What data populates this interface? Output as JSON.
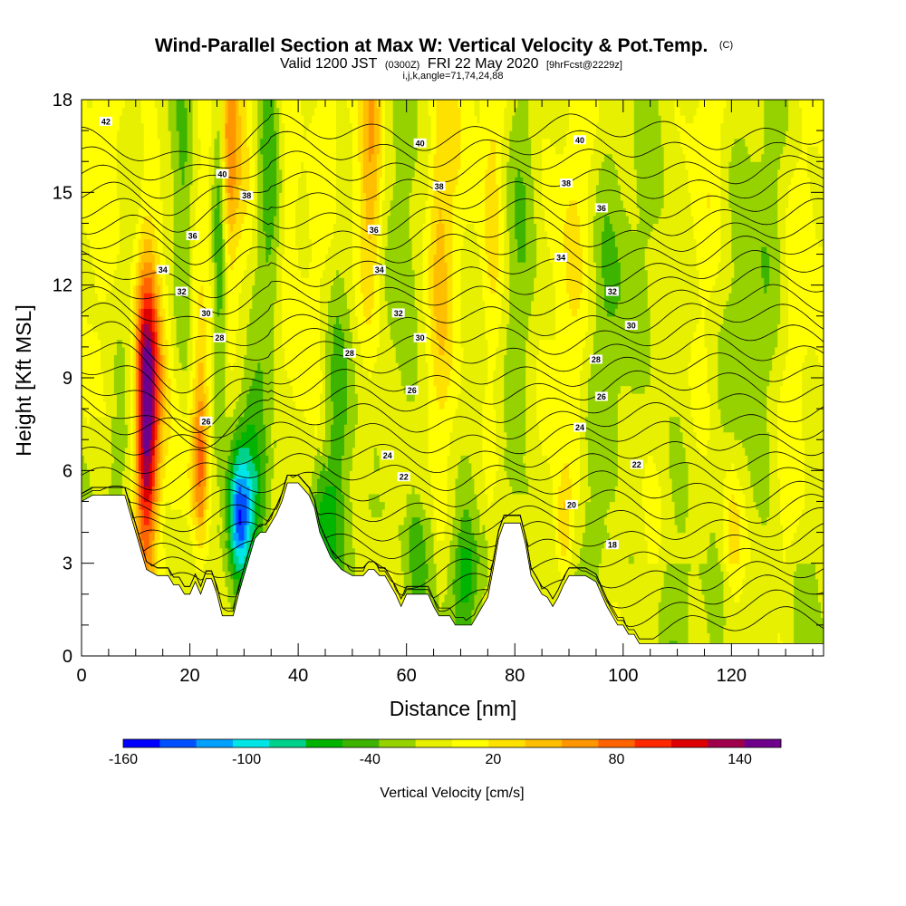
{
  "chart_data": {
    "type": "heatmap",
    "title": "Wind-Parallel Section at Max W: Vertical Velocity & Pot.Temp.",
    "title_mark": "(C)",
    "subtitle_parts": [
      "Valid 1200 JST",
      "(0300Z)",
      "FRI 22 May 2020",
      "[9hrFcst@2229z]"
    ],
    "subtitle2": "i,j,k,angle=71,74,24,88",
    "xlabel": "Distance [nm]",
    "ylabel": "Height [Kft MSL]",
    "xlim": [
      0,
      137
    ],
    "ylim": [
      0,
      18
    ],
    "x_ticks": [
      0,
      20,
      40,
      60,
      80,
      100,
      120
    ],
    "y_ticks": [
      0,
      3,
      6,
      9,
      12,
      15,
      18
    ],
    "x_tick_labels": [
      "0",
      "20",
      "40",
      "60",
      "80",
      "100",
      "120"
    ],
    "y_tick_labels": [
      "0",
      "3",
      "6",
      "9",
      "12",
      "15",
      "18"
    ],
    "colorbar": {
      "label": "Vertical Velocity [cm/s]",
      "range": [
        -160,
        160
      ],
      "step": 20,
      "tick_values": [
        -160,
        -100,
        -40,
        20,
        80,
        140
      ],
      "tick_labels": [
        "-160",
        "-100",
        "-40",
        "20",
        "80",
        "140"
      ],
      "colors": [
        "#0000ff",
        "#0050ff",
        "#00a0ff",
        "#00e6e6",
        "#00d28c",
        "#00b400",
        "#3cb400",
        "#96d200",
        "#e6f000",
        "#ffff00",
        "#ffe100",
        "#ffbe00",
        "#ff9600",
        "#ff6400",
        "#ff2800",
        "#dc0000",
        "#a0004b",
        "#6e008c"
      ]
    },
    "terrain": [
      [
        0,
        5.0
      ],
      [
        2,
        5.2
      ],
      [
        8,
        5.2
      ],
      [
        10,
        4.0
      ],
      [
        12,
        2.8
      ],
      [
        14,
        2.6
      ],
      [
        16,
        2.6
      ],
      [
        17,
        2.3
      ],
      [
        18,
        2.3
      ],
      [
        19,
        2.0
      ],
      [
        20,
        2.0
      ],
      [
        21,
        2.4
      ],
      [
        22,
        2.0
      ],
      [
        23,
        2.5
      ],
      [
        24,
        2.5
      ],
      [
        25,
        2.0
      ],
      [
        26,
        1.3
      ],
      [
        28,
        1.3
      ],
      [
        29,
        2.0
      ],
      [
        30,
        2.6
      ],
      [
        31,
        3.2
      ],
      [
        32,
        3.8
      ],
      [
        33,
        4.0
      ],
      [
        34,
        4.0
      ],
      [
        36,
        4.6
      ],
      [
        37,
        5.0
      ],
      [
        38,
        5.6
      ],
      [
        40,
        5.6
      ],
      [
        42,
        5.2
      ],
      [
        43,
        4.8
      ],
      [
        44,
        4.0
      ],
      [
        45,
        3.6
      ],
      [
        46,
        3.2
      ],
      [
        48,
        2.8
      ],
      [
        50,
        2.6
      ],
      [
        52,
        2.6
      ],
      [
        53,
        2.8
      ],
      [
        54,
        2.8
      ],
      [
        55,
        2.6
      ],
      [
        56,
        2.6
      ],
      [
        57,
        2.3
      ],
      [
        58,
        2.0
      ],
      [
        59,
        1.6
      ],
      [
        60,
        2.0
      ],
      [
        64,
        2.0
      ],
      [
        65,
        1.6
      ],
      [
        66,
        1.3
      ],
      [
        67,
        1.3
      ],
      [
        68,
        1.3
      ],
      [
        69,
        1.0
      ],
      [
        72,
        1.0
      ],
      [
        73,
        1.3
      ],
      [
        75,
        1.9
      ],
      [
        76,
        2.8
      ],
      [
        77,
        3.8
      ],
      [
        78,
        4.3
      ],
      [
        81,
        4.3
      ],
      [
        82,
        3.6
      ],
      [
        83,
        2.6
      ],
      [
        84,
        2.3
      ],
      [
        85,
        2.0
      ],
      [
        86,
        1.9
      ],
      [
        87,
        1.6
      ],
      [
        88,
        1.9
      ],
      [
        89,
        2.3
      ],
      [
        90,
        2.6
      ],
      [
        93,
        2.6
      ],
      [
        95,
        2.4
      ],
      [
        96,
        2.0
      ],
      [
        97,
        1.6
      ],
      [
        98,
        1.3
      ],
      [
        99,
        1.0
      ],
      [
        100,
        1.0
      ],
      [
        101,
        0.7
      ],
      [
        102,
        0.7
      ],
      [
        103,
        0.4
      ],
      [
        137,
        0.4
      ]
    ],
    "updrafts": [
      {
        "x": 12,
        "y": 7.5,
        "w_x": 2.0,
        "w_y": 5.0,
        "value": 140
      },
      {
        "x": 13,
        "y": 9.5,
        "w_x": 3.0,
        "w_y": 4.0,
        "value": 60
      },
      {
        "x": 22,
        "y": 6.5,
        "w_x": 1.6,
        "w_y": 3.5,
        "value": 90
      },
      {
        "x": 26.5,
        "y": 16.5,
        "w_x": 2.2,
        "w_y": 4.0,
        "value": 90
      },
      {
        "x": 31,
        "y": 15.0,
        "w_x": 2.5,
        "w_y": 5.0,
        "value": 20
      },
      {
        "x": 53.5,
        "y": 15.5,
        "w_x": 2.2,
        "w_y": 5.0,
        "value": 60
      },
      {
        "x": 66,
        "y": 14.0,
        "w_x": 2.0,
        "w_y": 6.0,
        "value": 40
      },
      {
        "x": 76,
        "y": 14.0,
        "w_x": 2.0,
        "w_y": 6.0,
        "value": 30
      },
      {
        "x": 90,
        "y": 12.0,
        "w_x": 3.0,
        "w_y": 7.0,
        "value": 10
      },
      {
        "x": 89,
        "y": 4.0,
        "w_x": 1.5,
        "w_y": 1.5,
        "value": 50
      },
      {
        "x": 120,
        "y": 4.0,
        "w_x": 2.0,
        "w_y": 2.5,
        "value": 40
      },
      {
        "x": 38,
        "y": 16.0,
        "w_x": 2.5,
        "w_y": 5.0,
        "value": 30
      }
    ],
    "downdrafts": [
      {
        "x": 29,
        "y": 4.5,
        "w_x": 2.0,
        "w_y": 2.0,
        "value": -110
      },
      {
        "x": 25.5,
        "y": 15.5,
        "w_x": 1.4,
        "w_y": 6.0,
        "value": -100
      },
      {
        "x": 19,
        "y": 13.0,
        "w_x": 2.0,
        "w_y": 6.0,
        "value": -50
      },
      {
        "x": 35,
        "y": 15.0,
        "w_x": 2.5,
        "w_y": 5.0,
        "value": -50
      },
      {
        "x": 32,
        "y": 6.0,
        "w_x": 3.5,
        "w_y": 3.0,
        "value": -60
      },
      {
        "x": 47,
        "y": 8.0,
        "w_x": 3.0,
        "w_y": 6.0,
        "value": -40
      },
      {
        "x": 60,
        "y": 10.0,
        "w_x": 2.5,
        "w_y": 8.0,
        "value": -35
      },
      {
        "x": 44,
        "y": 4.5,
        "w_x": 2.0,
        "w_y": 2.0,
        "value": -35
      },
      {
        "x": 71,
        "y": 2.5,
        "w_x": 2.5,
        "w_y": 2.0,
        "value": -45
      },
      {
        "x": 63,
        "y": 3.5,
        "w_x": 3.0,
        "w_y": 2.5,
        "value": -30
      },
      {
        "x": 82,
        "y": 10.0,
        "w_x": 3.0,
        "w_y": 8.0,
        "value": -30
      },
      {
        "x": 98,
        "y": 12.0,
        "w_x": 4.0,
        "w_y": 7.0,
        "value": -30
      },
      {
        "x": 108,
        "y": 8.0,
        "w_x": 4.0,
        "w_y": 10.0,
        "value": -25
      },
      {
        "x": 125,
        "y": 10.0,
        "w_x": 5.0,
        "w_y": 10.0,
        "value": -25
      }
    ],
    "theta_contours": {
      "base_value": 14,
      "interval": 1,
      "count": 30,
      "spacing_kft": 0.55,
      "floor_kft": 1.0
    },
    "contour_labels": [
      {
        "text": "42",
        "x": 4.5,
        "y": 17.3
      },
      {
        "text": "40",
        "x": 62.5,
        "y": 16.6
      },
      {
        "text": "40",
        "x": 92,
        "y": 16.7
      },
      {
        "text": "40",
        "x": 26,
        "y": 15.6
      },
      {
        "text": "38",
        "x": 30.5,
        "y": 14.9
      },
      {
        "text": "38",
        "x": 66,
        "y": 15.2
      },
      {
        "text": "38",
        "x": 89.5,
        "y": 15.3
      },
      {
        "text": "36",
        "x": 20.5,
        "y": 13.6
      },
      {
        "text": "36",
        "x": 54,
        "y": 13.8
      },
      {
        "text": "36",
        "x": 96,
        "y": 14.5
      },
      {
        "text": "34",
        "x": 15,
        "y": 12.5
      },
      {
        "text": "34",
        "x": 55,
        "y": 12.5
      },
      {
        "text": "34",
        "x": 88.5,
        "y": 12.9
      },
      {
        "text": "32",
        "x": 18.5,
        "y": 11.8
      },
      {
        "text": "32",
        "x": 58.5,
        "y": 11.1
      },
      {
        "text": "32",
        "x": 98,
        "y": 11.8
      },
      {
        "text": "30",
        "x": 23,
        "y": 11.1
      },
      {
        "text": "30",
        "x": 62.5,
        "y": 10.3
      },
      {
        "text": "30",
        "x": 101.5,
        "y": 10.7
      },
      {
        "text": "28",
        "x": 25.5,
        "y": 10.3
      },
      {
        "text": "28",
        "x": 49.5,
        "y": 9.8
      },
      {
        "text": "28",
        "x": 95,
        "y": 9.6
      },
      {
        "text": "26",
        "x": 61,
        "y": 8.6
      },
      {
        "text": "26",
        "x": 96,
        "y": 8.4
      },
      {
        "text": "26",
        "x": 23,
        "y": 7.6
      },
      {
        "text": "24",
        "x": 56.5,
        "y": 6.5
      },
      {
        "text": "24",
        "x": 92,
        "y": 7.4
      },
      {
        "text": "22",
        "x": 59.5,
        "y": 5.8
      },
      {
        "text": "22",
        "x": 102.5,
        "y": 6.2
      },
      {
        "text": "20",
        "x": 90.5,
        "y": 4.9
      },
      {
        "text": "18",
        "x": 98,
        "y": 3.6
      }
    ]
  }
}
